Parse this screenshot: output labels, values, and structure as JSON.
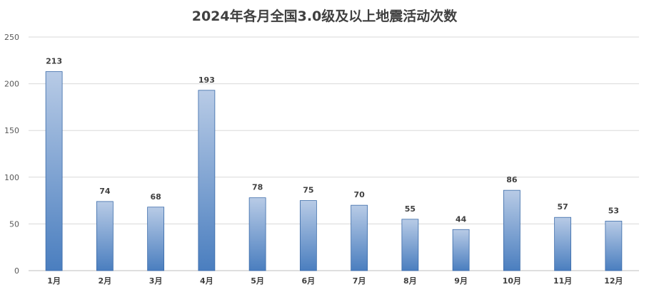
{
  "chart_data": {
    "type": "bar",
    "title": "2024年各月全国3.0级及以上地震活动次数",
    "categories": [
      "1月",
      "2月",
      "3月",
      "4月",
      "5月",
      "6月",
      "7月",
      "8月",
      "9月",
      "10月",
      "11月",
      "12月"
    ],
    "values": [
      213,
      74,
      68,
      193,
      78,
      75,
      70,
      55,
      44,
      86,
      57,
      53
    ],
    "ylim": [
      0,
      250
    ],
    "yticks": [
      0,
      50,
      100,
      150,
      200,
      250
    ],
    "grid": true,
    "legend": "none",
    "colors": {
      "bar_top": "#b8cbe6",
      "bar_bottom": "#4a7ebf",
      "grid": "#d9d9d9",
      "axis": "#bfbfbf"
    }
  }
}
